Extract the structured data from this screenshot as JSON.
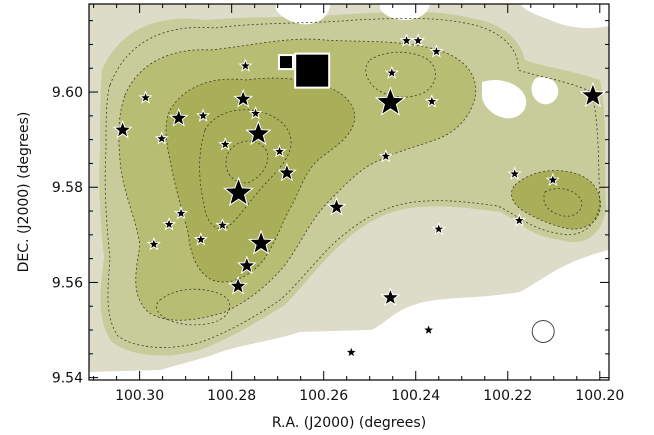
{
  "chart_data": {
    "type": "scatter",
    "title": "",
    "xlabel": "R.A. (J2000) (degrees)",
    "ylabel": "DEC. (J2000) (degrees)",
    "xlim": [
      100.311,
      100.198
    ],
    "ylim": [
      9.5395,
      9.6185
    ],
    "x_inverted": true,
    "grid": false,
    "x_ticks": [
      100.3,
      100.28,
      100.26,
      100.24,
      100.22,
      100.2
    ],
    "x_tick_labels": [
      "100.30",
      "100.28",
      "100.26",
      "100.24",
      "100.22",
      "100.20"
    ],
    "y_ticks": [
      9.54,
      9.56,
      9.58,
      9.6
    ],
    "y_tick_labels": [
      "9.54",
      "9.56",
      "9.58",
      "9.60"
    ],
    "background": "filled contour map (olive-green shading) with dotted contour lines",
    "colors": {
      "map_light": "#dfe0d0",
      "map_mid": "#c9cc9c",
      "map_dark": "#a9ae55",
      "marker_fill": "#000000",
      "marker_edge": "#ffffff"
    },
    "stars": [
      {
        "ra": 100.277,
        "dec": 9.6055,
        "size": "small"
      },
      {
        "ra": 100.2987,
        "dec": 9.5988,
        "size": "small"
      },
      {
        "ra": 100.2775,
        "dec": 9.5985,
        "size": "medium"
      },
      {
        "ra": 100.2915,
        "dec": 9.5945,
        "size": "medium"
      },
      {
        "ra": 100.2862,
        "dec": 9.595,
        "size": "small"
      },
      {
        "ra": 100.2748,
        "dec": 9.5955,
        "size": "small"
      },
      {
        "ra": 100.3037,
        "dec": 9.592,
        "size": "medium"
      },
      {
        "ra": 100.2952,
        "dec": 9.5902,
        "size": "small"
      },
      {
        "ra": 100.2742,
        "dec": 9.5912,
        "size": "large"
      },
      {
        "ra": 100.2814,
        "dec": 9.589,
        "size": "small"
      },
      {
        "ra": 100.2696,
        "dec": 9.5875,
        "size": "small"
      },
      {
        "ra": 100.268,
        "dec": 9.583,
        "size": "medium"
      },
      {
        "ra": 100.2785,
        "dec": 9.5788,
        "size": "xlarge"
      },
      {
        "ra": 100.291,
        "dec": 9.5745,
        "size": "small"
      },
      {
        "ra": 100.2936,
        "dec": 9.5722,
        "size": "small"
      },
      {
        "ra": 100.282,
        "dec": 9.572,
        "size": "small"
      },
      {
        "ra": 100.2867,
        "dec": 9.569,
        "size": "small"
      },
      {
        "ra": 100.2969,
        "dec": 9.568,
        "size": "small"
      },
      {
        "ra": 100.2736,
        "dec": 9.5682,
        "size": "large"
      },
      {
        "ra": 100.2767,
        "dec": 9.5635,
        "size": "medium"
      },
      {
        "ra": 100.2786,
        "dec": 9.5592,
        "size": "medium"
      },
      {
        "ra": 100.2572,
        "dec": 9.5758,
        "size": "medium"
      },
      {
        "ra": 100.2455,
        "dec": 9.5978,
        "size": "xlarge"
      },
      {
        "ra": 100.2452,
        "dec": 9.604,
        "size": "small"
      },
      {
        "ra": 100.242,
        "dec": 9.6108,
        "size": "small"
      },
      {
        "ra": 100.2395,
        "dec": 9.6108,
        "size": "small"
      },
      {
        "ra": 100.2355,
        "dec": 9.6085,
        "size": "small"
      },
      {
        "ra": 100.2365,
        "dec": 9.598,
        "size": "small"
      },
      {
        "ra": 100.2465,
        "dec": 9.5865,
        "size": "small"
      },
      {
        "ra": 100.235,
        "dec": 9.5712,
        "size": "small"
      },
      {
        "ra": 100.2185,
        "dec": 9.5828,
        "size": "small"
      },
      {
        "ra": 100.2175,
        "dec": 9.573,
        "size": "small"
      },
      {
        "ra": 100.2102,
        "dec": 9.5815,
        "size": "small"
      },
      {
        "ra": 100.2015,
        "dec": 9.5992,
        "size": "large"
      },
      {
        "ra": 100.2455,
        "dec": 9.5568,
        "size": "medium"
      },
      {
        "ra": 100.2372,
        "dec": 9.55,
        "size": "small"
      },
      {
        "ra": 100.254,
        "dec": 9.5453,
        "size": "small"
      }
    ],
    "squares": [
      {
        "ra": 100.2682,
        "dec": 9.6063,
        "size": "small"
      },
      {
        "ra": 100.2625,
        "dec": 9.6045,
        "size": "large"
      }
    ],
    "open_circle": {
      "ra": 100.2123,
      "dec": 9.5497
    }
  }
}
